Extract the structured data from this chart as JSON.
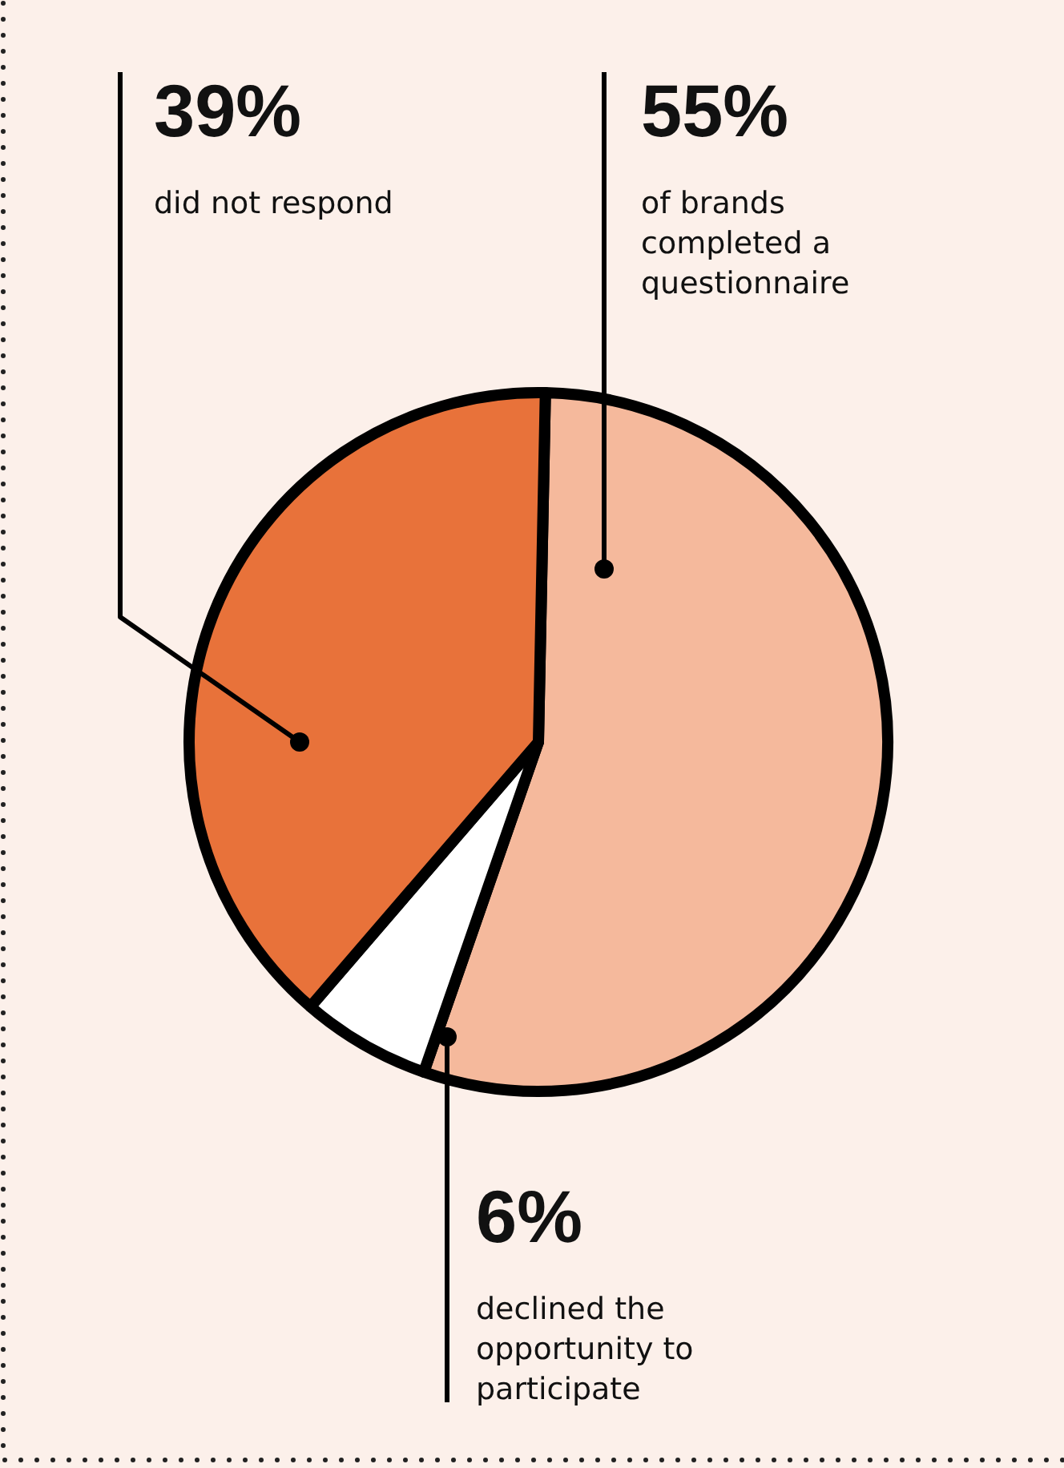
{
  "chart_data": {
    "type": "pie",
    "categories": [
      "of brands completed a questionnaire",
      "declined the opportunity to participate",
      "did not respond"
    ],
    "values": [
      55,
      6,
      39
    ],
    "value_labels": [
      "55%",
      "6%",
      "39%"
    ],
    "colors": [
      "#f5b99c",
      "#ffffff",
      "#e8723a"
    ]
  }
}
